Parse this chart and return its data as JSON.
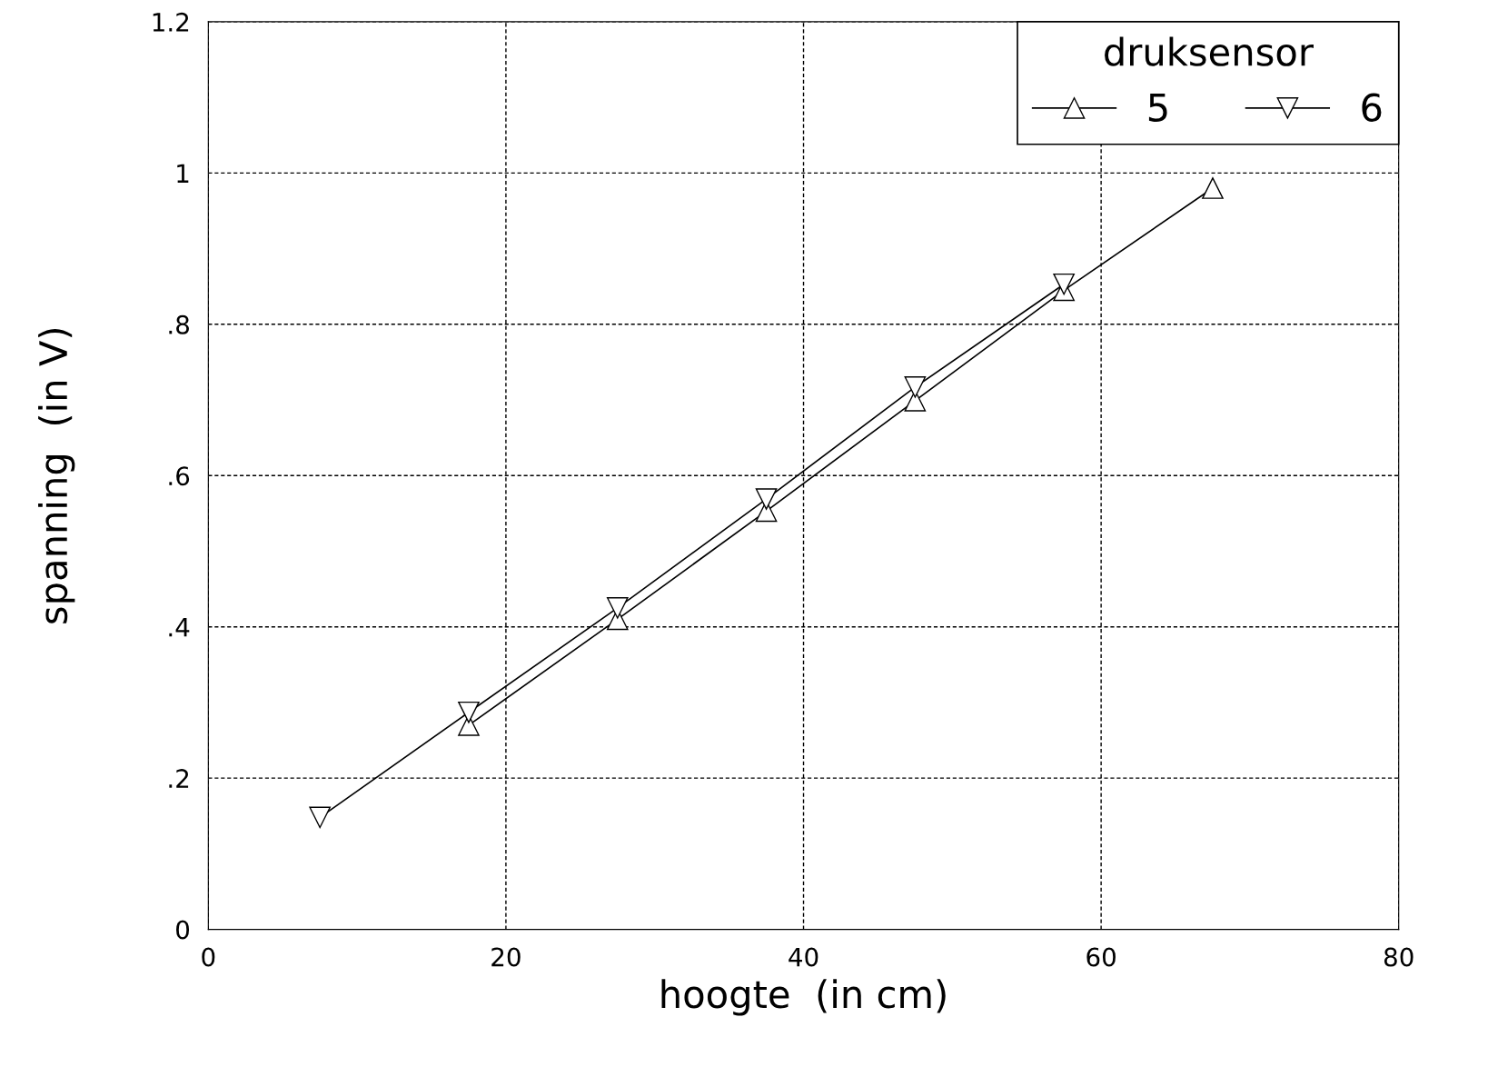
{
  "chart_data": {
    "type": "line",
    "xlabel": "hoogte  (in cm)",
    "ylabel": "spanning  (in V)",
    "legend_title": "druksensor",
    "legend": "top right",
    "grid": true,
    "line_style": "solid",
    "xlim": [
      0,
      80
    ],
    "xticks": [
      0,
      20,
      40,
      60,
      80
    ],
    "ylim": [
      0,
      1.2
    ],
    "yticks": [
      {
        "value": 0,
        "label": "0"
      },
      {
        "value": 0.2,
        "label": ".2"
      },
      {
        "value": 0.4,
        "label": ".4"
      },
      {
        "value": 0.6,
        "label": ".6"
      },
      {
        "value": 0.8,
        "label": ".8"
      },
      {
        "value": 1,
        "label": "1"
      },
      {
        "value": 1.2,
        "label": "1.2"
      }
    ],
    "series": [
      {
        "name": "5",
        "color": "#000000",
        "marker": "triangle",
        "x": [
          17.5,
          27.5,
          37.5,
          47.5,
          57.5,
          67.5
        ],
        "values": [
          0.27,
          0.41,
          0.553,
          0.699,
          0.845,
          0.98
        ]
      },
      {
        "name": "6",
        "color": "#000000",
        "marker": "triangle_down",
        "x": [
          7.5,
          17.5,
          27.5,
          37.5,
          47.5,
          57.5
        ],
        "values": [
          0.148,
          0.287,
          0.425,
          0.569,
          0.717,
          0.853
        ]
      }
    ]
  }
}
